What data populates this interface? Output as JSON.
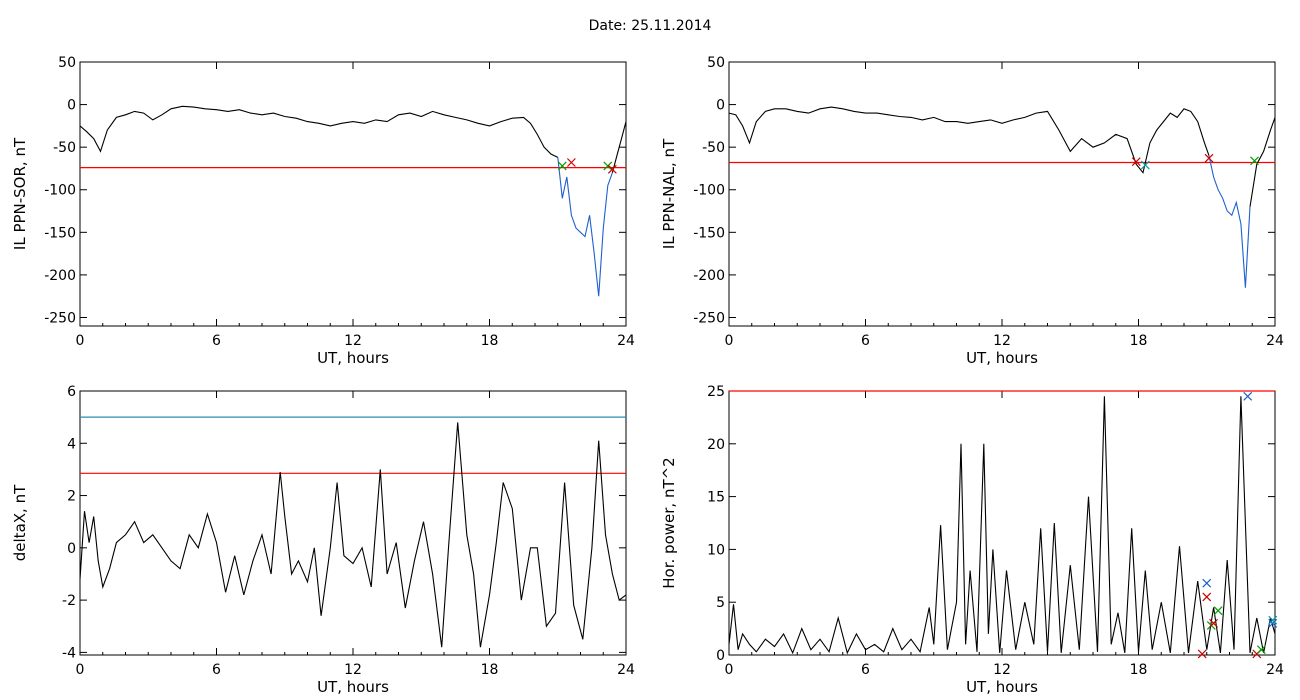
{
  "header": {
    "date_label": "Date:  25.11.2014"
  },
  "chart_data": [
    {
      "type": "line",
      "ylabel": "IL PPN-SOR, nT",
      "xlabel": "UT, hours",
      "xlim": [
        0,
        24
      ],
      "ylim": [
        -260,
        50
      ],
      "xticks": [
        0,
        6,
        12,
        18,
        24
      ],
      "yticks": [
        50,
        0,
        -50,
        -100,
        -150,
        -200,
        -250
      ],
      "threshold": {
        "value": -74,
        "color": "#ff0000"
      },
      "series": [
        {
          "color": "#000000",
          "x": [
            0,
            0.3,
            0.6,
            0.9,
            1.2,
            1.6,
            2,
            2.4,
            2.8,
            3.2,
            3.6,
            4,
            4.5,
            5,
            5.5,
            6,
            6.5,
            7,
            7.5,
            8,
            8.5,
            9,
            9.5,
            10,
            10.5,
            11,
            11.5,
            12,
            12.5,
            13,
            13.5,
            14,
            14.5,
            15,
            15.5,
            16,
            16.5,
            17,
            17.5,
            18,
            18.5,
            19,
            19.5,
            19.8,
            20.1,
            20.4,
            20.7,
            21.0
          ],
          "y": [
            -25,
            -32,
            -40,
            -55,
            -30,
            -15,
            -12,
            -8,
            -10,
            -18,
            -12,
            -5,
            -2,
            -3,
            -5,
            -6,
            -8,
            -6,
            -10,
            -12,
            -10,
            -14,
            -16,
            -20,
            -22,
            -25,
            -22,
            -20,
            -22,
            -18,
            -20,
            -12,
            -10,
            -14,
            -8,
            -12,
            -15,
            -18,
            -22,
            -25,
            -20,
            -16,
            -15,
            -22,
            -35,
            -50,
            -58,
            -62
          ]
        },
        {
          "color": "#1f5fd0",
          "x": [
            21.0,
            21.2,
            21.4,
            21.6,
            21.8,
            22.0,
            22.2,
            22.4,
            22.6,
            22.8,
            23.0,
            23.2,
            23.4
          ],
          "y": [
            -62,
            -110,
            -85,
            -130,
            -145,
            -150,
            -155,
            -130,
            -175,
            -225,
            -145,
            -95,
            -80
          ]
        },
        {
          "color": "#000000",
          "x": [
            23.4,
            23.6,
            23.8,
            24
          ],
          "y": [
            -80,
            -60,
            -40,
            -20
          ]
        }
      ],
      "markers": [
        {
          "x": 21.2,
          "y": -72,
          "color": "#00a000"
        },
        {
          "x": 21.6,
          "y": -68,
          "color": "#cc0000"
        },
        {
          "x": 23.2,
          "y": -72,
          "color": "#00a000"
        },
        {
          "x": 23.4,
          "y": -76,
          "color": "#cc0000"
        }
      ]
    },
    {
      "type": "line",
      "ylabel": "IL PPN-NAL, nT",
      "xlabel": "UT, hours",
      "xlim": [
        0,
        24
      ],
      "ylim": [
        -260,
        50
      ],
      "xticks": [
        0,
        6,
        12,
        18,
        24
      ],
      "yticks": [
        50,
        0,
        -50,
        -100,
        -150,
        -200,
        -250
      ],
      "threshold": {
        "value": -68,
        "color": "#ff0000"
      },
      "series": [
        {
          "color": "#000000",
          "x": [
            0,
            0.3,
            0.6,
            0.9,
            1.2,
            1.6,
            2,
            2.5,
            3,
            3.5,
            4,
            4.5,
            5,
            5.5,
            6,
            6.5,
            7,
            7.5,
            8,
            8.5,
            9,
            9.5,
            10,
            10.5,
            11,
            11.5,
            12,
            12.5,
            13,
            13.5,
            14,
            14.5,
            15,
            15.5,
            16,
            16.5,
            17,
            17.5,
            17.9,
            18.2,
            18.5,
            18.8,
            19.1,
            19.4,
            19.7,
            20.0,
            20.3,
            20.6,
            20.9,
            21.1
          ],
          "y": [
            -10,
            -12,
            -25,
            -45,
            -20,
            -8,
            -5,
            -5,
            -8,
            -10,
            -5,
            -3,
            -5,
            -8,
            -10,
            -10,
            -12,
            -14,
            -15,
            -18,
            -15,
            -20,
            -20,
            -22,
            -20,
            -18,
            -22,
            -18,
            -15,
            -10,
            -8,
            -30,
            -55,
            -40,
            -50,
            -45,
            -35,
            -40,
            -70,
            -80,
            -45,
            -30,
            -20,
            -10,
            -15,
            -5,
            -8,
            -20,
            -45,
            -60
          ]
        },
        {
          "color": "#1f5fd0",
          "x": [
            21.1,
            21.3,
            21.5,
            21.7,
            21.9,
            22.1,
            22.3,
            22.5,
            22.7,
            22.9
          ],
          "y": [
            -60,
            -85,
            -100,
            -110,
            -125,
            -130,
            -115,
            -140,
            -215,
            -120
          ]
        },
        {
          "color": "#000000",
          "x": [
            22.9,
            23.2,
            23.5,
            23.8,
            24
          ],
          "y": [
            -120,
            -70,
            -55,
            -30,
            -15
          ]
        }
      ],
      "markers": [
        {
          "x": 17.9,
          "y": -67,
          "color": "#cc0000"
        },
        {
          "x": 18.3,
          "y": -71,
          "color": "#00a0a0"
        },
        {
          "x": 21.1,
          "y": -63,
          "color": "#cc0000"
        },
        {
          "x": 23.1,
          "y": -66,
          "color": "#00a000"
        }
      ]
    },
    {
      "type": "line",
      "ylabel": "deltaX, nT",
      "xlabel": "UT, hours",
      "xlim": [
        0,
        24
      ],
      "ylim": [
        -4.1,
        6
      ],
      "xticks": [
        0,
        6,
        12,
        18,
        24
      ],
      "yticks": [
        6,
        4,
        2,
        0,
        -2,
        -4
      ],
      "threshold": {
        "value": 2.85,
        "color": "#ff0000"
      },
      "threshold2": {
        "value": 5.0,
        "color": "#2a8bb0"
      },
      "series": [
        {
          "color": "#000000",
          "x": [
            0,
            0.2,
            0.4,
            0.6,
            0.8,
            1.0,
            1.3,
            1.6,
            2.0,
            2.4,
            2.8,
            3.2,
            3.6,
            4.0,
            4.4,
            4.8,
            5.2,
            5.6,
            6.0,
            6.4,
            6.8,
            7.2,
            7.6,
            8.0,
            8.4,
            8.8,
            9.0,
            9.3,
            9.6,
            10.0,
            10.3,
            10.6,
            11.0,
            11.3,
            11.6,
            12.0,
            12.4,
            12.8,
            13.2,
            13.5,
            13.9,
            14.3,
            14.7,
            15.1,
            15.5,
            15.9,
            16.2,
            16.6,
            17.0,
            17.3,
            17.6,
            18.0,
            18.3,
            18.6,
            19.0,
            19.4,
            19.8,
            20.1,
            20.5,
            20.9,
            21.3,
            21.7,
            22.1,
            22.5,
            22.8,
            23.1,
            23.4,
            23.7,
            24
          ],
          "y": [
            -1.2,
            1.4,
            0.2,
            1.2,
            -0.5,
            -1.5,
            -0.8,
            0.2,
            0.5,
            1.0,
            0.2,
            0.5,
            0.0,
            -0.5,
            -0.8,
            0.5,
            0.0,
            1.3,
            0.2,
            -1.7,
            -0.3,
            -1.8,
            -0.5,
            0.5,
            -1.0,
            2.9,
            1.2,
            -1.0,
            -0.5,
            -1.3,
            0.0,
            -2.6,
            0.0,
            2.5,
            -0.3,
            -0.6,
            0.0,
            -1.5,
            3.0,
            -1.0,
            0.2,
            -2.3,
            -0.5,
            1.0,
            -1.0,
            -3.8,
            0.0,
            4.8,
            0.5,
            -1.0,
            -3.8,
            -1.8,
            0.2,
            2.5,
            1.5,
            -2.0,
            0.0,
            0.0,
            -3.0,
            -2.5,
            2.5,
            -2.2,
            -3.5,
            0.0,
            4.1,
            0.5,
            -1.0,
            -2.0,
            -1.8
          ]
        }
      ],
      "markers": []
    },
    {
      "type": "line",
      "ylabel": "Hor. power, nT^2",
      "xlabel": "UT, hours",
      "xlim": [
        0,
        24
      ],
      "ylim": [
        0,
        25
      ],
      "xticks": [
        0,
        6,
        12,
        18,
        24
      ],
      "yticks": [
        25,
        20,
        15,
        10,
        5,
        0
      ],
      "threshold": {
        "value": 25,
        "color": "#ff0000"
      },
      "series": [
        {
          "color": "#000000",
          "x": [
            0,
            0.2,
            0.4,
            0.6,
            0.9,
            1.2,
            1.6,
            2.0,
            2.4,
            2.8,
            3.2,
            3.6,
            4.0,
            4.4,
            4.8,
            5.2,
            5.6,
            6.0,
            6.4,
            6.8,
            7.2,
            7.6,
            8.0,
            8.4,
            8.8,
            9.0,
            9.3,
            9.6,
            10.0,
            10.2,
            10.4,
            10.6,
            10.9,
            11.2,
            11.4,
            11.6,
            11.9,
            12.2,
            12.6,
            13.0,
            13.4,
            13.7,
            14.0,
            14.3,
            14.6,
            15.0,
            15.4,
            15.8,
            16.2,
            16.5,
            16.8,
            17.1,
            17.4,
            17.7,
            18.0,
            18.3,
            18.6,
            19.0,
            19.4,
            19.8,
            20.2,
            20.6,
            21.0,
            21.3,
            21.6,
            21.9,
            22.2,
            22.5,
            22.9,
            23.2,
            23.5,
            23.8,
            24
          ],
          "y": [
            1.0,
            4.8,
            0.5,
            2.0,
            1.0,
            0.3,
            1.5,
            0.8,
            2.0,
            0.2,
            2.5,
            0.5,
            1.5,
            0.3,
            3.5,
            0.2,
            2.0,
            0.5,
            1.0,
            0.3,
            2.5,
            0.5,
            1.5,
            0.3,
            4.5,
            1.0,
            12.3,
            0.5,
            5.0,
            20.0,
            1.0,
            8.0,
            0.3,
            20.0,
            2.0,
            10.0,
            0.2,
            8.0,
            0.5,
            5.0,
            1.0,
            12.0,
            0.3,
            12.5,
            0.2,
            8.5,
            0.5,
            15.0,
            0.3,
            24.5,
            1.0,
            4.0,
            0.2,
            12.0,
            0.3,
            8.0,
            0.5,
            5.0,
            0.2,
            10.3,
            0.2,
            7.0,
            0.5,
            4.5,
            0.2,
            9.0,
            0.5,
            24.5,
            0.2,
            3.5,
            0.2,
            3.5,
            2.0
          ]
        }
      ],
      "markers": [
        {
          "x": 21.0,
          "y": 6.8,
          "color": "#1f5fd0"
        },
        {
          "x": 21.0,
          "y": 5.5,
          "color": "#cc0000"
        },
        {
          "x": 21.2,
          "y": 2.8,
          "color": "#00a000"
        },
        {
          "x": 21.5,
          "y": 4.2,
          "color": "#00a000"
        },
        {
          "x": 21.3,
          "y": 3.0,
          "color": "#cc0000"
        },
        {
          "x": 20.8,
          "y": 0.1,
          "color": "#cc0000"
        },
        {
          "x": 22.8,
          "y": 24.5,
          "color": "#1f5fd0"
        },
        {
          "x": 23.2,
          "y": 0.1,
          "color": "#cc0000"
        },
        {
          "x": 23.4,
          "y": 0.5,
          "color": "#00a000"
        },
        {
          "x": 23.9,
          "y": 3.3,
          "color": "#00a0a0"
        },
        {
          "x": 23.9,
          "y": 3.0,
          "color": "#1f5fd0"
        }
      ]
    }
  ]
}
